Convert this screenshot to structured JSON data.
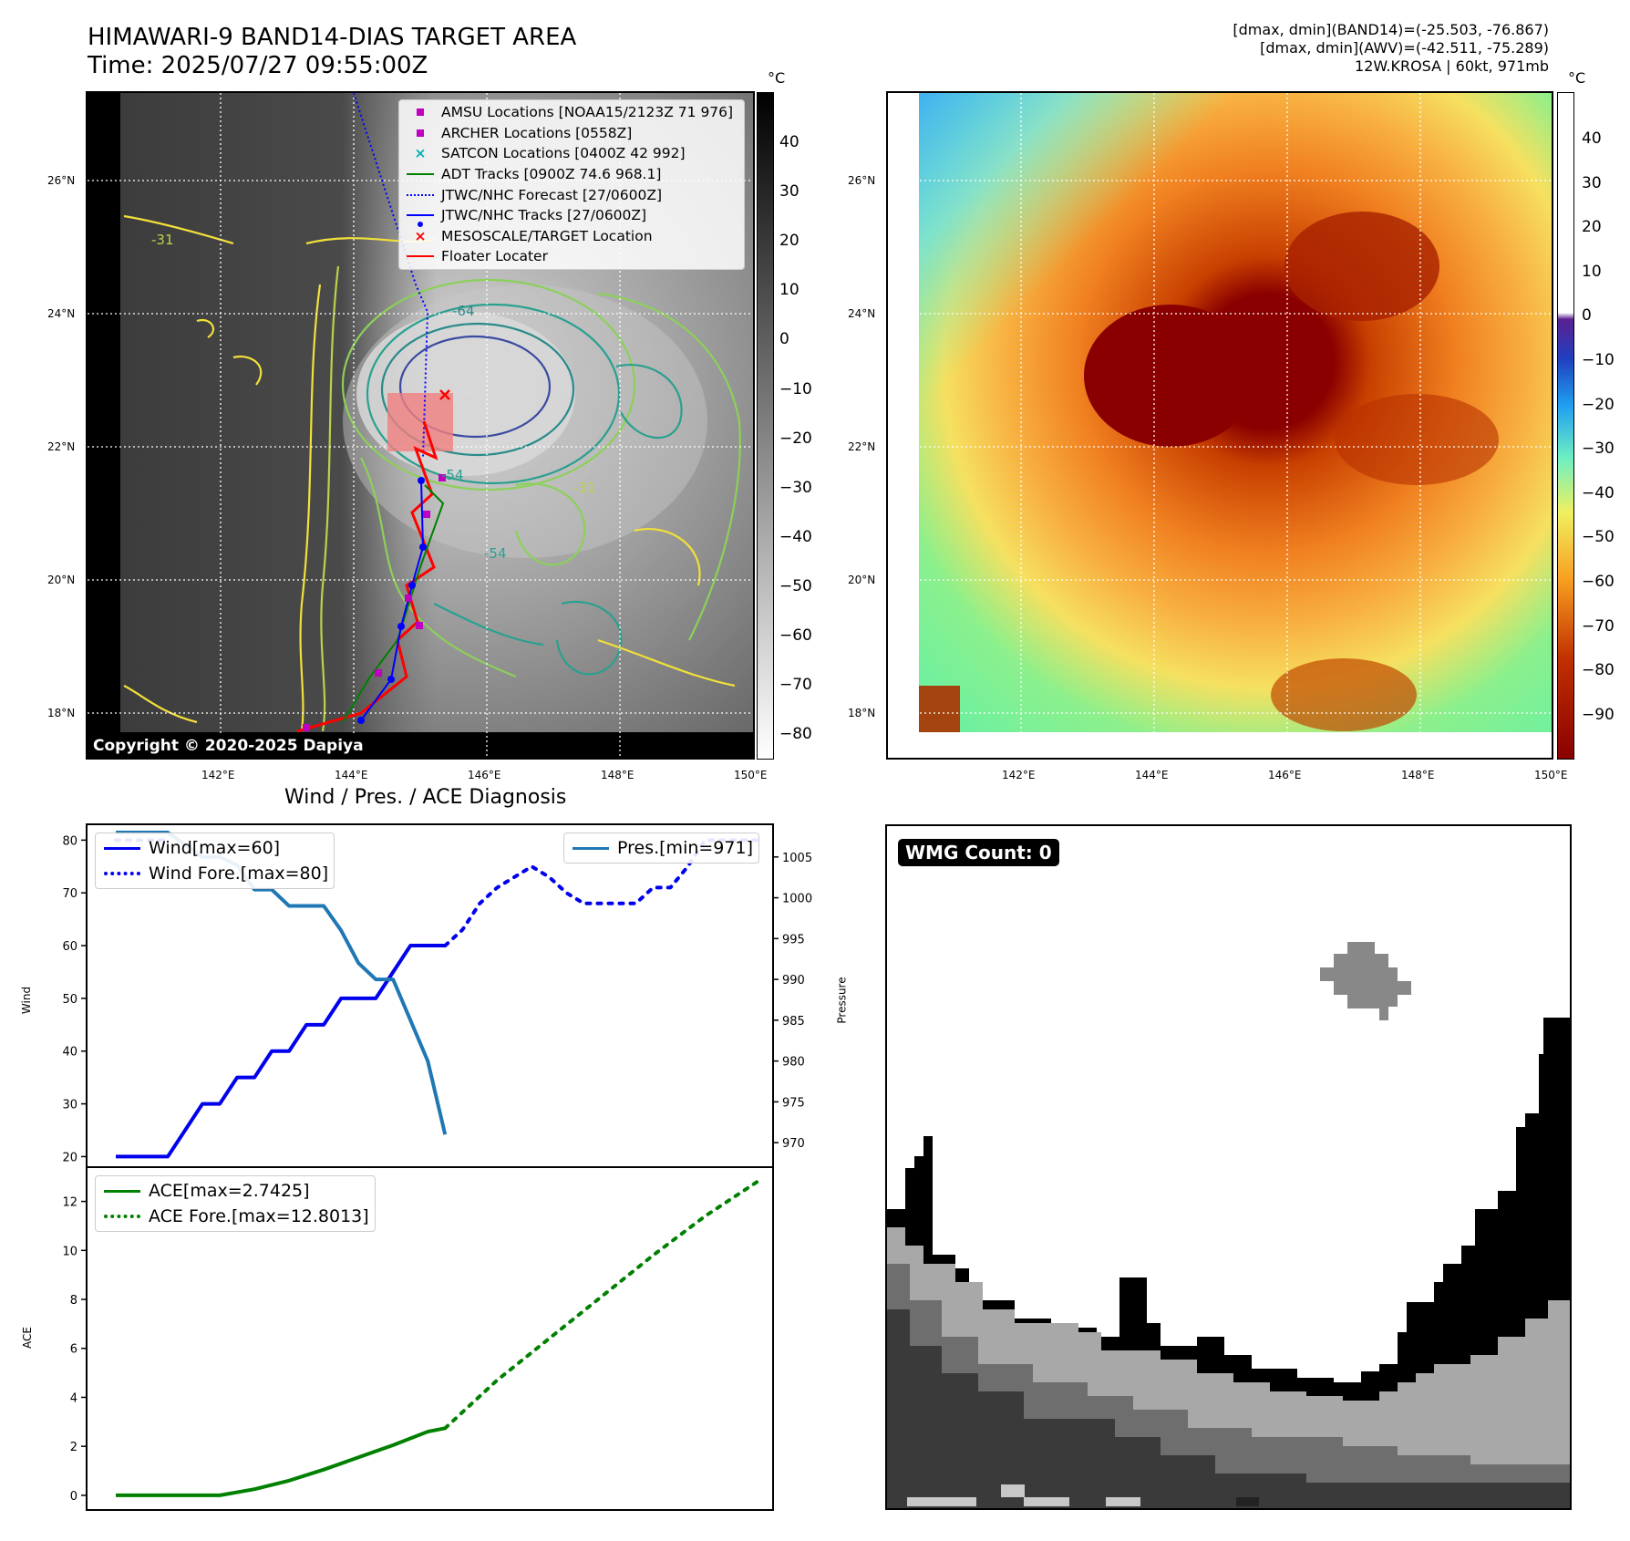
{
  "header": {
    "title_line1": "HIMAWARI-9 BAND14-DIAS TARGET AREA",
    "title_line2": "Time: 2025/07/27 09:55:00Z",
    "info_line1": "[dmax, dmin](BAND14)=(-25.503, -76.867)",
    "info_line2": "[dmax, dmin](AWV)=(-42.511, -75.289)",
    "info_line3": "12W.KROSA | 60kt, 971mb"
  },
  "map": {
    "lat_labels": [
      "26°N",
      "24°N",
      "22°N",
      "20°N",
      "18°N"
    ],
    "lon_labels": [
      "142°E",
      "144°E",
      "146°E",
      "148°E",
      "150°E"
    ],
    "copyright": "Copyright © 2020-2025 Dapiya",
    "contour_labels": [
      "-64",
      "-54",
      "-31",
      "-54",
      "-31"
    ],
    "legend": [
      {
        "label": "AMSU Locations [NOAA15/2123Z 71 976]",
        "symbol": "square",
        "color": "#c000c0"
      },
      {
        "label": "ARCHER Locations [0558Z]",
        "symbol": "square",
        "color": "#c000c0"
      },
      {
        "label": "SATCON Locations [0400Z 42 992]",
        "symbol": "x",
        "color": "#00b0b0"
      },
      {
        "label": "ADT Tracks [0900Z 74.6 968.1]",
        "symbol": "line",
        "color": "#008000"
      },
      {
        "label": "JTWC/NHC Forecast [27/0600Z]",
        "symbol": "dotted",
        "color": "#0000ff"
      },
      {
        "label": "JTWC/NHC Tracks [27/0600Z]",
        "symbol": "line-dot",
        "color": "#0000ff"
      },
      {
        "label": "MESOSCALE/TARGET Location",
        "symbol": "x",
        "color": "#ff0000"
      },
      {
        "label": "Floater Locater",
        "symbol": "line",
        "color": "#ff0000"
      }
    ]
  },
  "colorbar_gray": {
    "unit": "°C",
    "ticks": [
      "40",
      "30",
      "20",
      "10",
      "0",
      "−10",
      "−20",
      "−30",
      "−40",
      "−50",
      "−60",
      "−70",
      "−80"
    ]
  },
  "colorbar_awv": {
    "unit": "°C",
    "ticks": [
      "40",
      "30",
      "20",
      "10",
      "0",
      "−10",
      "−20",
      "−30",
      "−40",
      "−50",
      "−60",
      "−70",
      "−80",
      "−90"
    ]
  },
  "diagnosis": {
    "title": "Wind / Pres. / ACE Diagnosis",
    "wind_ylabel": "Wind",
    "pres_ylabel": "Pressure",
    "ace_ylabel": "ACE",
    "wind_legend": [
      "Wind[max=60]",
      "Wind Fore.[max=80]"
    ],
    "pres_legend": [
      "Pres.[min=971]"
    ],
    "ace_legend": [
      "ACE[max=2.7425]",
      "ACE Fore.[max=12.8013]"
    ]
  },
  "wmg": {
    "label": "WMG Count: 0"
  },
  "chart_data": [
    {
      "type": "line",
      "title": "Wind / Pres. / ACE Diagnosis",
      "ylabel": "Wind",
      "ylim": [
        18,
        83
      ],
      "yticks": [
        20,
        30,
        40,
        50,
        60,
        70,
        80
      ],
      "x": [
        0,
        1,
        2,
        3,
        4,
        5,
        6,
        7,
        8,
        9,
        10,
        11,
        12,
        13,
        14,
        15,
        16,
        17,
        18,
        19,
        20,
        21,
        22,
        23,
        24,
        25,
        26,
        27,
        28,
        29,
        30,
        31,
        32,
        33,
        34,
        35,
        36,
        37
      ],
      "series": [
        {
          "name": "Wind[max=60]",
          "color": "#0000ee",
          "style": "solid",
          "x": [
            0,
            3,
            5,
            6,
            7,
            8,
            9,
            10,
            11,
            12,
            13,
            14,
            15,
            16,
            17,
            18,
            19
          ],
          "values": [
            20,
            20,
            30,
            30,
            35,
            35,
            40,
            40,
            45,
            45,
            50,
            50,
            50,
            55,
            60,
            60,
            60
          ]
        },
        {
          "name": "Wind Fore.[max=80]",
          "color": "#0000ee",
          "style": "dotted",
          "x": [
            0,
            3
          ],
          "values": [
            80,
            80
          ]
        },
        {
          "name": "Wind Fore.[max=80]",
          "color": "#0000ee",
          "style": "dotted",
          "x": [
            19,
            20,
            21,
            22,
            23,
            24,
            25,
            26,
            27,
            28,
            29,
            30,
            31,
            32,
            33,
            34,
            35,
            36,
            37
          ],
          "values": [
            60,
            63,
            68,
            71,
            73,
            75,
            73,
            70,
            68,
            68,
            68,
            68,
            71,
            71,
            75,
            80,
            80,
            80,
            80
          ]
        }
      ]
    },
    {
      "type": "line",
      "ylabel": "Pressure",
      "ylim": [
        967,
        1009
      ],
      "yticks": [
        970,
        975,
        980,
        985,
        990,
        995,
        1000,
        1005
      ],
      "series": [
        {
          "name": "Pres.[min=971]",
          "color": "#1f77b4",
          "style": "solid",
          "x": [
            0,
            3,
            5,
            6,
            7,
            8,
            9,
            10,
            11,
            12,
            13,
            14,
            15,
            16,
            17,
            18,
            19
          ],
          "values": [
            1008,
            1008,
            1005,
            1005,
            1004,
            1001,
            1001,
            999,
            999,
            999,
            996,
            992,
            990,
            990,
            985,
            980,
            971
          ]
        }
      ]
    },
    {
      "type": "line",
      "ylabel": "ACE",
      "ylim": [
        -0.6,
        13.4
      ],
      "yticks": [
        0,
        2,
        4,
        6,
        8,
        10,
        12
      ],
      "series": [
        {
          "name": "ACE[max=2.7425]",
          "color": "#008000",
          "style": "solid",
          "x": [
            0,
            3,
            6,
            8,
            10,
            12,
            14,
            16,
            18,
            19
          ],
          "values": [
            0,
            0,
            0,
            0.25,
            0.6,
            1.05,
            1.55,
            2.05,
            2.6,
            2.74
          ]
        },
        {
          "name": "ACE Fore.[max=12.8013]",
          "color": "#008000",
          "style": "dotted",
          "x": [
            19,
            22,
            25,
            28,
            31,
            34,
            37
          ],
          "values": [
            2.74,
            4.7,
            6.4,
            8.1,
            9.8,
            11.4,
            12.8
          ]
        }
      ]
    }
  ]
}
